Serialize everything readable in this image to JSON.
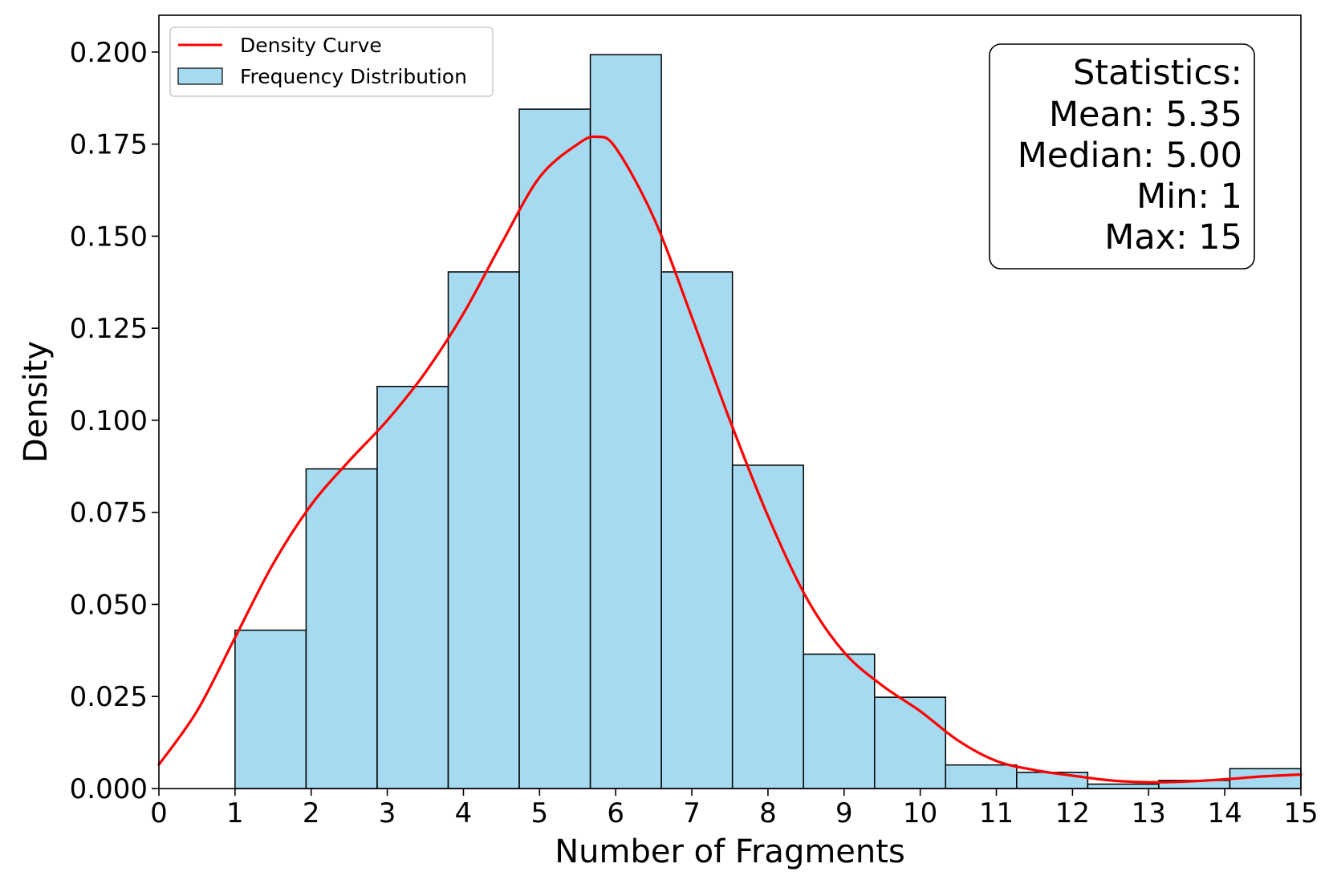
{
  "chart_data": {
    "type": "bar",
    "title": "",
    "xlabel": "Number of Fragments",
    "ylabel": "Density",
    "xlim": [
      0,
      15
    ],
    "ylim": [
      0,
      0.21
    ],
    "x_ticks": [
      "0",
      "1",
      "2",
      "3",
      "4",
      "5",
      "6",
      "7",
      "8",
      "9",
      "10",
      "11",
      "12",
      "13",
      "14",
      "15"
    ],
    "y_ticks": [
      "0.000",
      "0.025",
      "0.050",
      "0.075",
      "0.100",
      "0.125",
      "0.150",
      "0.175",
      "0.200"
    ],
    "legend": {
      "position": "top-left",
      "entries": [
        {
          "label": "Density Curve",
          "type": "line"
        },
        {
          "label": "Frequency Distribution",
          "type": "patch"
        }
      ]
    },
    "histogram": {
      "name": "Frequency Distribution",
      "bin_start": 1,
      "bin_end": 15,
      "bin_count": 15,
      "values": [
        0.043,
        0.0868,
        0.1092,
        0.1403,
        0.1845,
        0.1993,
        0.1403,
        0.0878,
        0.0365,
        0.0248,
        0.0064,
        0.0044,
        0.0012,
        0.0022,
        0.0054
      ]
    },
    "density_curve": {
      "name": "Density Curve",
      "x": [
        0,
        0.5,
        1,
        1.5,
        2,
        2.5,
        3,
        3.5,
        4,
        4.5,
        5,
        5.5,
        5.75,
        6,
        6.5,
        7,
        7.5,
        8,
        8.5,
        9,
        9.5,
        10,
        10.5,
        11,
        11.5,
        12,
        12.5,
        13,
        13.5,
        14,
        14.5,
        15
      ],
      "y": [
        0.0065,
        0.021,
        0.041,
        0.061,
        0.077,
        0.089,
        0.1,
        0.113,
        0.129,
        0.148,
        0.166,
        0.175,
        0.177,
        0.174,
        0.155,
        0.128,
        0.1,
        0.074,
        0.052,
        0.037,
        0.028,
        0.021,
        0.013,
        0.0075,
        0.005,
        0.0035,
        0.0022,
        0.0017,
        0.0019,
        0.0025,
        0.0033,
        0.0038
      ]
    },
    "statistics_box": {
      "position": "top-right",
      "lines": [
        "Statistics:",
        "Mean: 5.35",
        "Median: 5.00",
        "Min: 1",
        "Max: 15"
      ]
    },
    "colors": {
      "bar_fill": "#87ceeb",
      "bar_edge": "#000000",
      "curve": "#ff0000",
      "axis": "#000000"
    }
  }
}
